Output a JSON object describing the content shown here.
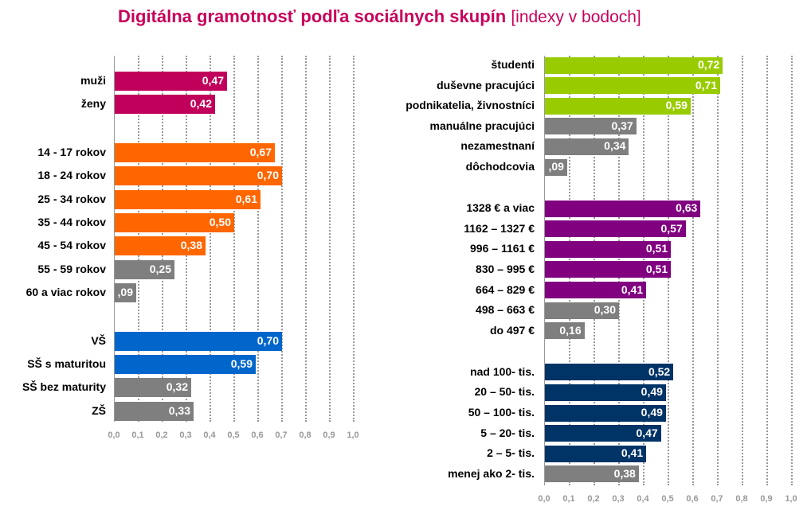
{
  "title": {
    "main": "Digitálna gramotnosť podľa sociálnych skupín",
    "sub": "[indexy v bodoch]"
  },
  "colors": {
    "magenta": "#c0005a",
    "orange": "#ff6600",
    "blue": "#0066cc",
    "gray": "#7f7f7f",
    "green": "#99cc00",
    "purple": "#800080",
    "navy": "#003366"
  },
  "chart_data": [
    {
      "type": "bar",
      "orientation": "horizontal",
      "xlim": [
        0,
        1.0
      ],
      "xticks": [
        "0,0",
        "0,1",
        "0,2",
        "0,3",
        "0,4",
        "0,5",
        "0,6",
        "0,7",
        "0,8",
        "0,9",
        "1,0"
      ],
      "grid": true,
      "groups": [
        [
          {
            "label": "muži",
            "value": 0.47,
            "text": "0,47",
            "color": "magenta"
          },
          {
            "label": "ženy",
            "value": 0.42,
            "text": "0,42",
            "color": "magenta"
          }
        ],
        [
          {
            "label": "14 - 17 rokov",
            "value": 0.67,
            "text": "0,67",
            "color": "orange"
          },
          {
            "label": "18 - 24 rokov",
            "value": 0.7,
            "text": "0,70",
            "color": "orange"
          },
          {
            "label": "25 - 34 rokov",
            "value": 0.61,
            "text": "0,61",
            "color": "orange"
          },
          {
            "label": "35 - 44 rokov",
            "value": 0.5,
            "text": "0,50",
            "color": "orange"
          },
          {
            "label": "45 - 54 rokov",
            "value": 0.38,
            "text": "0,38",
            "color": "orange"
          },
          {
            "label": "55 - 59 rokov",
            "value": 0.25,
            "text": "0,25",
            "color": "gray"
          },
          {
            "label": "60 a viac rokov",
            "value": 0.09,
            "text": ",09",
            "color": "gray"
          }
        ],
        [
          {
            "label": "VŠ",
            "value": 0.7,
            "text": "0,70",
            "color": "blue"
          },
          {
            "label": "SŠ s maturitou",
            "value": 0.59,
            "text": "0,59",
            "color": "blue"
          },
          {
            "label": "SŠ bez maturity",
            "value": 0.32,
            "text": "0,32",
            "color": "gray"
          },
          {
            "label": "ZŠ",
            "value": 0.33,
            "text": "0,33",
            "color": "gray"
          }
        ]
      ]
    },
    {
      "type": "bar",
      "orientation": "horizontal",
      "xlim": [
        0,
        1.0
      ],
      "xticks": [
        "0,0",
        "0,1",
        "0,2",
        "0,3",
        "0,4",
        "0,5",
        "0,6",
        "0,7",
        "0,8",
        "0,9",
        "1,0"
      ],
      "grid": true,
      "groups": [
        [
          {
            "label": "študenti",
            "value": 0.72,
            "text": "0,72",
            "color": "green"
          },
          {
            "label": "duševne pracujúci",
            "value": 0.71,
            "text": "0,71",
            "color": "green"
          },
          {
            "label": "podnikatelia, živnostníci",
            "value": 0.59,
            "text": "0,59",
            "color": "green"
          },
          {
            "label": "manuálne pracujúci",
            "value": 0.37,
            "text": "0,37",
            "color": "gray"
          },
          {
            "label": "nezamestnaní",
            "value": 0.34,
            "text": "0,34",
            "color": "gray"
          },
          {
            "label": "dôchodcovia",
            "value": 0.09,
            "text": ",09",
            "color": "gray"
          }
        ],
        [
          {
            "label": "1328 € a viac",
            "value": 0.63,
            "text": "0,63",
            "color": "purple"
          },
          {
            "label": "1162 – 1327 €",
            "value": 0.57,
            "text": "0,57",
            "color": "purple"
          },
          {
            "label": "996 – 1161 €",
            "value": 0.51,
            "text": "0,51",
            "color": "purple"
          },
          {
            "label": "830 – 995 €",
            "value": 0.51,
            "text": "0,51",
            "color": "purple"
          },
          {
            "label": "664 – 829 €",
            "value": 0.41,
            "text": "0,41",
            "color": "purple"
          },
          {
            "label": "498 – 663 €",
            "value": 0.3,
            "text": "0,30",
            "color": "gray"
          },
          {
            "label": "do 497 €",
            "value": 0.16,
            "text": "0,16",
            "color": "gray"
          }
        ],
        [
          {
            "label": "nad 100- tis.",
            "value": 0.52,
            "text": "0,52",
            "color": "navy"
          },
          {
            "label": "20 – 50- tis.",
            "value": 0.49,
            "text": "0,49",
            "color": "navy"
          },
          {
            "label": "50 – 100- tis.",
            "value": 0.49,
            "text": "0,49",
            "color": "navy"
          },
          {
            "label": "5 – 20- tis.",
            "value": 0.47,
            "text": "0,47",
            "color": "navy"
          },
          {
            "label": "2 – 5- tis.",
            "value": 0.41,
            "text": "0,41",
            "color": "navy"
          },
          {
            "label": "menej ako 2- tis.",
            "value": 0.38,
            "text": "0,38",
            "color": "gray"
          }
        ]
      ]
    }
  ]
}
